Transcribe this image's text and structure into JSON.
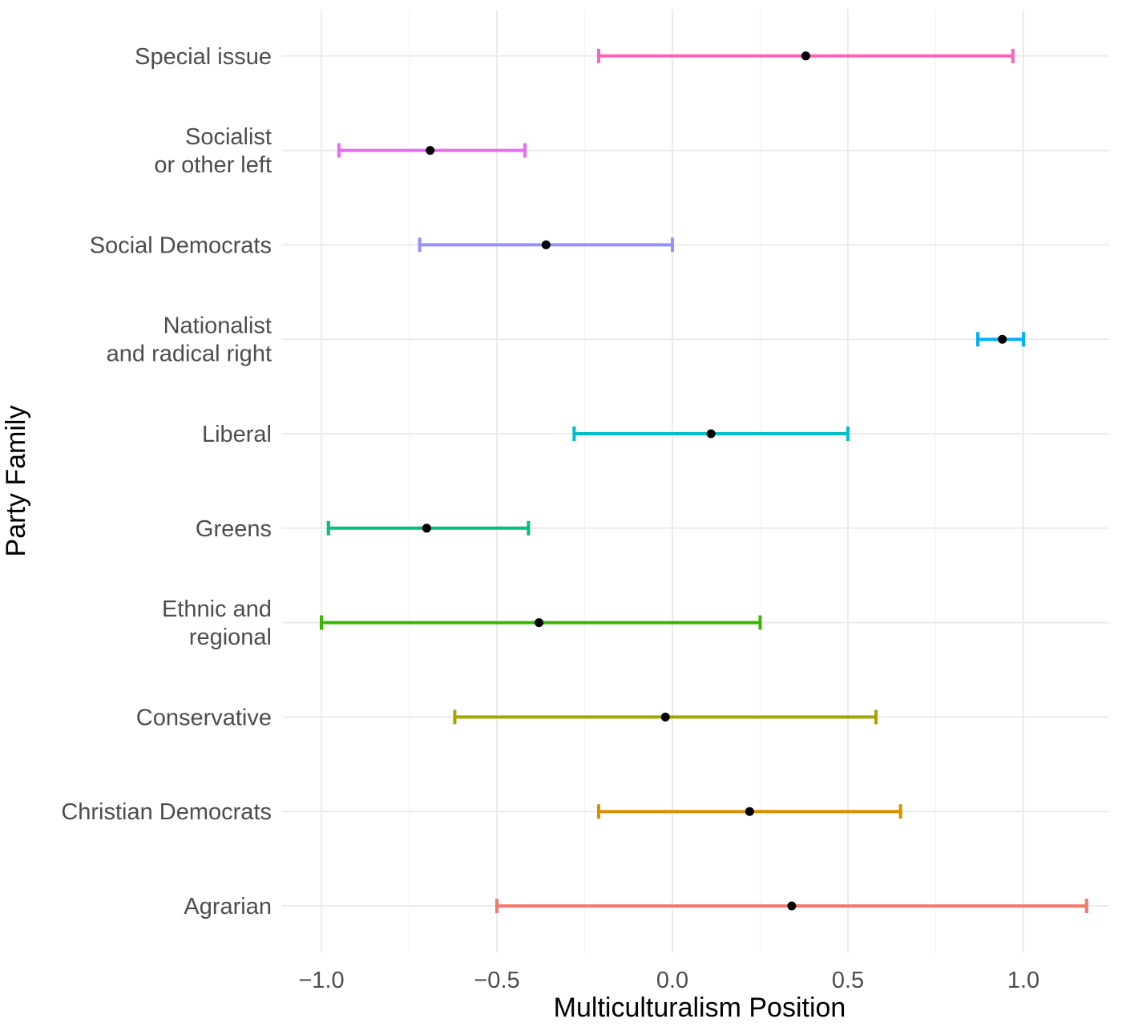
{
  "chart_data": {
    "type": "errorbar",
    "xlabel": "Multiculturalism Position",
    "ylabel": "Party Family",
    "xlim": [
      -1.1,
      1.25
    ],
    "x_ticks": [
      -1.0,
      -0.5,
      0.0,
      0.5,
      1.0
    ],
    "x_tick_labels": [
      "−1.0",
      "−0.5",
      "0.0",
      "0.5",
      "1.0"
    ],
    "grid": true,
    "legend": "none",
    "categories": [
      {
        "label_lines": [
          "Agrarian"
        ],
        "estimate": 0.34,
        "lower": -0.5,
        "upper": 1.18,
        "color": "#F8766D"
      },
      {
        "label_lines": [
          "Christian Democrats"
        ],
        "estimate": 0.22,
        "lower": -0.21,
        "upper": 0.65,
        "color": "#D89000"
      },
      {
        "label_lines": [
          "Conservative"
        ],
        "estimate": -0.02,
        "lower": -0.62,
        "upper": 0.58,
        "color": "#A3A500"
      },
      {
        "label_lines": [
          "Ethnic and",
          "regional"
        ],
        "estimate": -0.38,
        "lower": -1.0,
        "upper": 0.25,
        "color": "#39B600"
      },
      {
        "label_lines": [
          "Greens"
        ],
        "estimate": -0.7,
        "lower": -0.98,
        "upper": -0.41,
        "color": "#00BF7D"
      },
      {
        "label_lines": [
          "Liberal"
        ],
        "estimate": 0.11,
        "lower": -0.28,
        "upper": 0.5,
        "color": "#00BFC4"
      },
      {
        "label_lines": [
          "Nationalist",
          "and radical right"
        ],
        "estimate": 0.94,
        "lower": 0.87,
        "upper": 1.0,
        "color": "#00B0F6"
      },
      {
        "label_lines": [
          "Social Democrats"
        ],
        "estimate": -0.36,
        "lower": -0.72,
        "upper": 0.0,
        "color": "#9590FF"
      },
      {
        "label_lines": [
          "Socialist",
          "or other left"
        ],
        "estimate": -0.69,
        "lower": -0.95,
        "upper": -0.42,
        "color": "#E76BF3"
      },
      {
        "label_lines": [
          "Special issue"
        ],
        "estimate": 0.38,
        "lower": -0.21,
        "upper": 0.97,
        "color": "#FF62BC"
      }
    ]
  }
}
